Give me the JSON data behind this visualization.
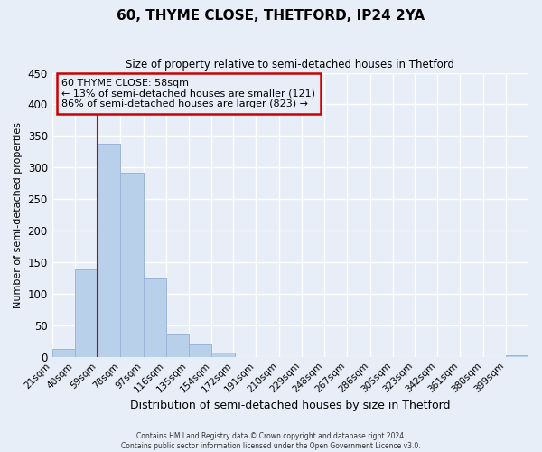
{
  "title": "60, THYME CLOSE, THETFORD, IP24 2YA",
  "subtitle": "Size of property relative to semi-detached houses in Thetford",
  "xlabel": "Distribution of semi-detached houses by size in Thetford",
  "ylabel": "Number of semi-detached properties",
  "bin_labels": [
    "21sqm",
    "40sqm",
    "59sqm",
    "78sqm",
    "97sqm",
    "116sqm",
    "135sqm",
    "154sqm",
    "172sqm",
    "191sqm",
    "210sqm",
    "229sqm",
    "248sqm",
    "267sqm",
    "286sqm",
    "305sqm",
    "323sqm",
    "342sqm",
    "361sqm",
    "380sqm",
    "399sqm"
  ],
  "bin_edges": [
    21,
    40,
    59,
    78,
    97,
    116,
    135,
    154,
    172,
    191,
    210,
    229,
    248,
    267,
    286,
    305,
    323,
    342,
    361,
    380,
    399
  ],
  "bar_heights": [
    12,
    138,
    337,
    292,
    124,
    35,
    19,
    7,
    0,
    0,
    0,
    0,
    0,
    0,
    0,
    0,
    0,
    0,
    0,
    0,
    3
  ],
  "bar_color": "#b8d0ea",
  "bar_edge_color": "#9ab5d9",
  "property_line_x": 59,
  "property_line_color": "#cc0000",
  "ylim": [
    0,
    450
  ],
  "yticks": [
    0,
    50,
    100,
    150,
    200,
    250,
    300,
    350,
    400,
    450
  ],
  "annotation_title": "60 THYME CLOSE: 58sqm",
  "annotation_line1": "← 13% of semi-detached houses are smaller (121)",
  "annotation_line2": "86% of semi-detached houses are larger (823) →",
  "annotation_box_color": "#cc0000",
  "footer1": "Contains HM Land Registry data © Crown copyright and database right 2024.",
  "footer2": "Contains public sector information licensed under the Open Government Licence v3.0.",
  "bg_color": "#e8eef8",
  "grid_color": "#ffffff"
}
